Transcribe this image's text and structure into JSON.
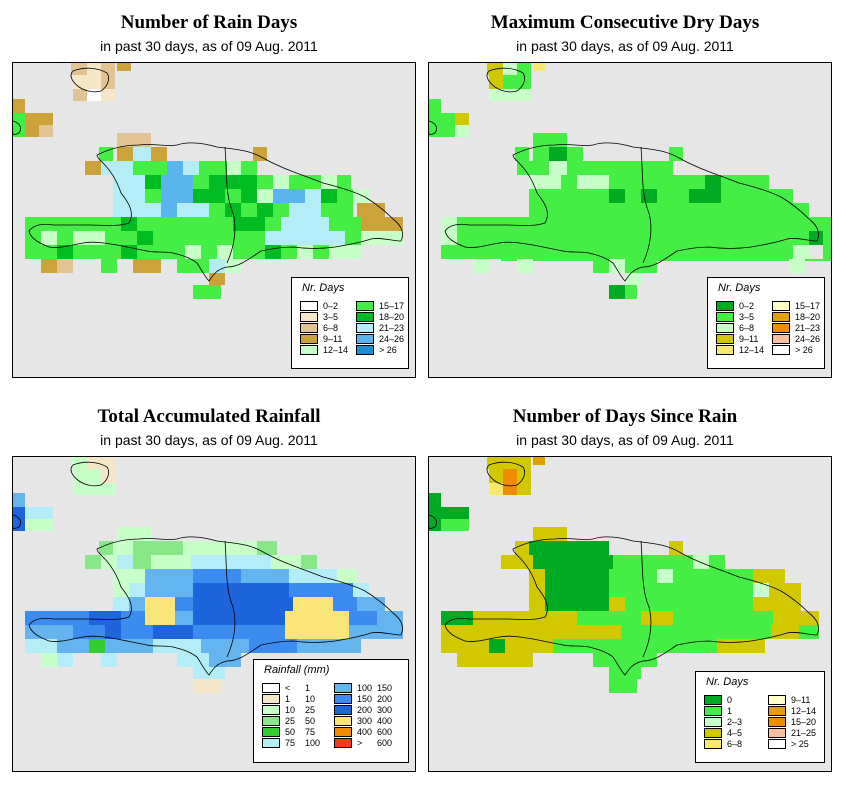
{
  "panels": [
    {
      "id": "rain_days",
      "title": "Number of Rain Days",
      "subtitle": "in past 30 days, as of  09 Aug. 2011",
      "legend": {
        "title": "Nr. Days",
        "items": [
          {
            "label": "0–2",
            "color": "#ffffff"
          },
          {
            "label": "3–5",
            "color": "#f5e6c8"
          },
          {
            "label": "6–8",
            "color": "#e2c494"
          },
          {
            "label": "9–11",
            "color": "#cca23a"
          },
          {
            "label": "12–14",
            "color": "#c8ffc8"
          },
          {
            "label": "15–17",
            "color": "#44ee44"
          },
          {
            "label": "18–20",
            "color": "#00bb22"
          },
          {
            "label": "21–23",
            "color": "#b4ecf8"
          },
          {
            "label": "24–26",
            "color": "#5ab4ee"
          },
          {
            "label": "> 26",
            "color": "#1e8ed2"
          }
        ]
      }
    },
    {
      "id": "max_dry",
      "title": "Maximum Consecutive Dry Days",
      "subtitle": "in past 30 days, as of  09 Aug. 2011",
      "legend": {
        "title": "Nr. Days",
        "items": [
          {
            "label": "0–2",
            "color": "#00aa22"
          },
          {
            "label": "3–5",
            "color": "#44ee44"
          },
          {
            "label": "6–8",
            "color": "#c8ffc8"
          },
          {
            "label": "9–11",
            "color": "#d2c800"
          },
          {
            "label": "12–14",
            "color": "#f8e870"
          },
          {
            "label": "15–17",
            "color": "#ffffc8"
          },
          {
            "label": "18–20",
            "color": "#e0a000"
          },
          {
            "label": "21–23",
            "color": "#f08c00"
          },
          {
            "label": "24–26",
            "color": "#f8c0a0"
          },
          {
            "label": "> 26",
            "color": "#ffffff"
          }
        ]
      }
    },
    {
      "id": "total_rain",
      "title": "Total Accumulated Rainfall",
      "subtitle": "in past 30 days, as of  09 Aug. 2011",
      "legend": {
        "title": "Rainfall (mm)",
        "items": [
          {
            "lo": "<",
            "hi": "1",
            "color": "#ffffff"
          },
          {
            "lo": "1",
            "hi": "10",
            "color": "#f5e6c8"
          },
          {
            "lo": "10",
            "hi": "25",
            "color": "#c8ffc8"
          },
          {
            "lo": "25",
            "hi": "50",
            "color": "#88e888"
          },
          {
            "lo": "50",
            "hi": "75",
            "color": "#33cc33"
          },
          {
            "lo": "75",
            "hi": "100",
            "color": "#b4ecf8"
          },
          {
            "lo": "100",
            "hi": "150",
            "color": "#64b4f0"
          },
          {
            "lo": "150",
            "hi": "200",
            "color": "#3c8cf0"
          },
          {
            "lo": "200",
            "hi": "300",
            "color": "#1e64dc"
          },
          {
            "lo": "300",
            "hi": "400",
            "color": "#fae678"
          },
          {
            "lo": "400",
            "hi": "600",
            "color": "#f08c00"
          },
          {
            "lo": ">",
            "hi": "600",
            "color": "#f03c14"
          }
        ]
      }
    },
    {
      "id": "days_since",
      "title": "Number of Days Since Rain",
      "subtitle": "in past 30 days, as of  09 Aug. 2011",
      "legend": {
        "title": "Nr. Days",
        "items": [
          {
            "label": "0",
            "color": "#00aa22"
          },
          {
            "label": "1",
            "color": "#44ee44"
          },
          {
            "label": "2–3",
            "color": "#c8ffc8"
          },
          {
            "label": "4–5",
            "color": "#d2c800"
          },
          {
            "label": "6–8",
            "color": "#f8e870"
          },
          {
            "label": "9–11",
            "color": "#ffffc8"
          },
          {
            "label": "12–14",
            "color": "#e0a000"
          },
          {
            "label": "15–20",
            "color": "#f08c00"
          },
          {
            "label": "21–25",
            "color": "#f8c0a0"
          },
          {
            "label": "> 25",
            "color": "#ffffff"
          }
        ]
      }
    }
  ]
}
